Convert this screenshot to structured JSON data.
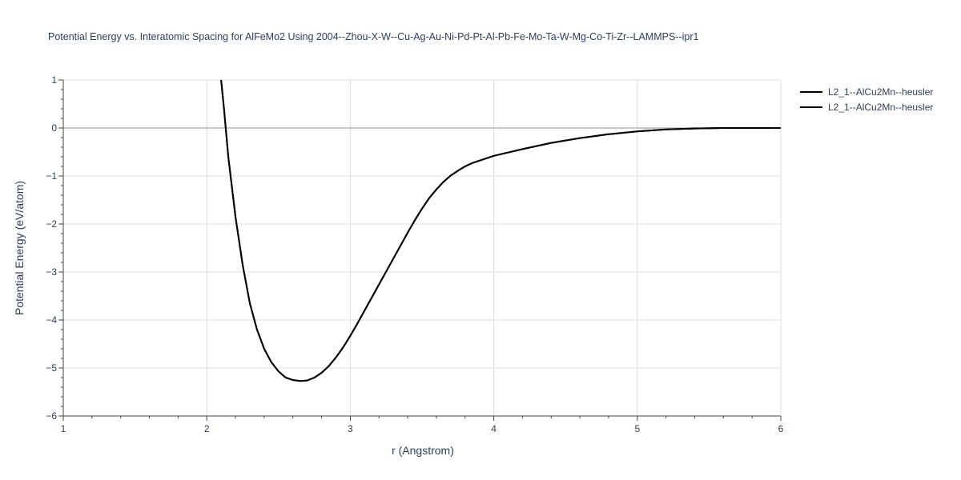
{
  "chart_data": {
    "type": "line",
    "title": "Potential Energy vs. Interatomic Spacing for AlFeMo2 Using 2004--Zhou-X-W--Cu-Ag-Au-Ni-Pd-Pt-Al-Pb-Fe-Mo-Ta-W-Mg-Co-Ti-Zr--LAMMPS--ipr1",
    "xlabel": "r (Angstrom)",
    "ylabel": "Potential Energy (eV/atom)",
    "xlim": [
      1,
      6
    ],
    "ylim": [
      -6,
      1
    ],
    "x_ticks": [
      1,
      2,
      3,
      4,
      5,
      6
    ],
    "x_tick_labels": [
      "1",
      "2",
      "3",
      "4",
      "5",
      "6"
    ],
    "y_ticks": [
      1,
      0,
      -1,
      -2,
      -3,
      -4,
      -5,
      -6
    ],
    "y_tick_labels": [
      "1",
      "0",
      "−1",
      "−2",
      "−3",
      "−4",
      "−5",
      "−6"
    ],
    "grid": true,
    "legend_position": "top-right",
    "series": [
      {
        "name": "L2_1--AlCu2Mn--heusler",
        "color": "#000000",
        "x": [
          2.1,
          2.12,
          2.15,
          2.2,
          2.25,
          2.3,
          2.35,
          2.4,
          2.45,
          2.5,
          2.55,
          2.6,
          2.65,
          2.7,
          2.75,
          2.8,
          2.85,
          2.9,
          2.95,
          3.0,
          3.05,
          3.1,
          3.2,
          3.3,
          3.4,
          3.45,
          3.5,
          3.55,
          3.6,
          3.65,
          3.7,
          3.75,
          3.8,
          3.85,
          3.9,
          3.95,
          4.0,
          4.2,
          4.4,
          4.6,
          4.8,
          5.0,
          5.2,
          5.4,
          5.6,
          5.8,
          6.0
        ],
        "y": [
          1.0,
          0.4,
          -0.6,
          -1.85,
          -2.85,
          -3.65,
          -4.2,
          -4.6,
          -4.88,
          -5.07,
          -5.2,
          -5.25,
          -5.27,
          -5.26,
          -5.2,
          -5.1,
          -4.96,
          -4.78,
          -4.57,
          -4.33,
          -4.07,
          -3.8,
          -3.26,
          -2.72,
          -2.18,
          -1.92,
          -1.68,
          -1.46,
          -1.28,
          -1.12,
          -0.99,
          -0.89,
          -0.8,
          -0.73,
          -0.68,
          -0.63,
          -0.58,
          -0.44,
          -0.31,
          -0.21,
          -0.13,
          -0.07,
          -0.03,
          -0.01,
          0.0,
          0.0,
          0.0
        ]
      },
      {
        "name": "L2_1--AlCu2Mn--heusler",
        "color": "#000000",
        "x": [
          2.1,
          2.12,
          2.15,
          2.2,
          2.25,
          2.3,
          2.35,
          2.4,
          2.45,
          2.5,
          2.55,
          2.6,
          2.65,
          2.7,
          2.75,
          2.8,
          2.85,
          2.9,
          2.95,
          3.0,
          3.05,
          3.1,
          3.2,
          3.3,
          3.4,
          3.45,
          3.5,
          3.55,
          3.6,
          3.65,
          3.7,
          3.75,
          3.8,
          3.85,
          3.9,
          3.95,
          4.0,
          4.2,
          4.4,
          4.6,
          4.8,
          5.0,
          5.2,
          5.4,
          5.6,
          5.8,
          6.0
        ],
        "y": [
          1.0,
          0.4,
          -0.6,
          -1.85,
          -2.85,
          -3.65,
          -4.2,
          -4.6,
          -4.88,
          -5.07,
          -5.2,
          -5.25,
          -5.27,
          -5.26,
          -5.2,
          -5.1,
          -4.96,
          -4.78,
          -4.57,
          -4.33,
          -4.07,
          -3.8,
          -3.26,
          -2.72,
          -2.18,
          -1.92,
          -1.68,
          -1.46,
          -1.28,
          -1.12,
          -0.99,
          -0.89,
          -0.8,
          -0.73,
          -0.68,
          -0.63,
          -0.58,
          -0.44,
          -0.31,
          -0.21,
          -0.13,
          -0.07,
          -0.03,
          -0.01,
          0.0,
          0.0,
          0.0
        ]
      }
    ],
    "colors": {
      "grid": "#dedede",
      "zero_line": "#c8c8c8",
      "axis": "#444444",
      "text": "#2a3f5f"
    }
  }
}
